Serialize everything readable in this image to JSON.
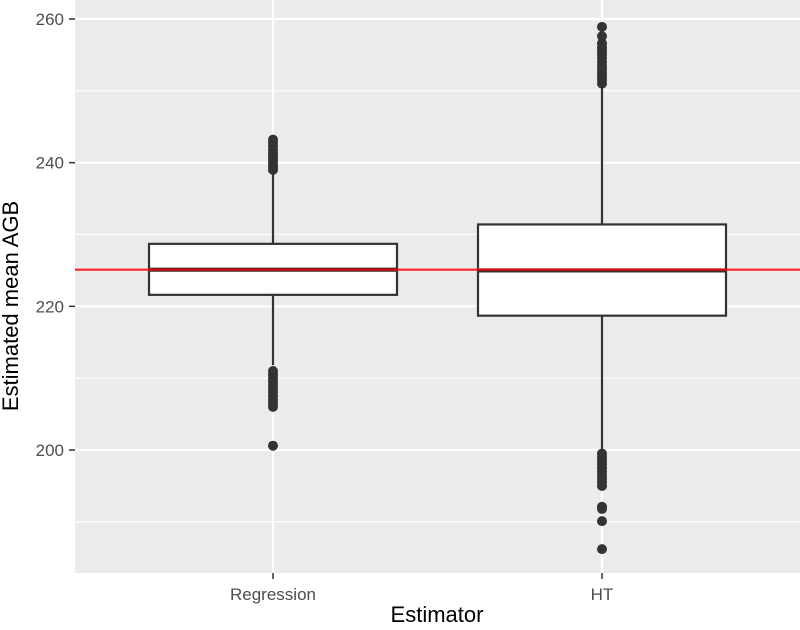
{
  "chart_data": {
    "type": "boxplot",
    "title": "",
    "xlabel": "Estimator",
    "ylabel": "Estimated mean AGB",
    "categories": [
      "Regression",
      "HT"
    ],
    "ylim": [
      184.5,
      261.3
    ],
    "yticks": [
      200,
      220,
      240,
      260
    ],
    "grid": true,
    "legend": "none",
    "reference_line": {
      "y": 225.1,
      "color": "#ff0000",
      "label": ""
    },
    "series": [
      {
        "name": "Regression",
        "min_whisker": 211.8,
        "q1": 221.6,
        "median": 225.1,
        "q3": 228.7,
        "max_whisker": 238.8,
        "outliers_high": [
          239.0,
          239.4,
          239.8,
          240.2,
          240.6,
          241.0,
          241.4,
          241.8,
          242.3,
          242.8,
          243.2
        ],
        "outliers_low": [
          211.0,
          210.5,
          210.0,
          209.5,
          209.0,
          208.5,
          208.0,
          207.5,
          207.0,
          206.5,
          206.0,
          200.6
        ]
      },
      {
        "name": "HT",
        "min_whisker": 199.8,
        "q1": 218.7,
        "median": 225.0,
        "q3": 231.4,
        "max_whisker": 250.6,
        "outliers_high": [
          251.0,
          251.5,
          252.0,
          252.5,
          253.0,
          253.5,
          254.0,
          254.5,
          255.0,
          255.5,
          256.0,
          256.6,
          257.6,
          258.9
        ],
        "outliers_low": [
          199.5,
          199.0,
          198.5,
          198.0,
          197.5,
          197.0,
          196.5,
          196.0,
          195.5,
          195.0,
          192.1,
          191.8,
          190.1,
          186.2
        ]
      }
    ]
  },
  "colors": {
    "panel_bg": "#ebebeb",
    "grid_major": "#ffffff",
    "box_fill": "#ffffff",
    "box_stroke": "#333333",
    "median_stroke": "#333333",
    "reference_line": "#ff0000",
    "point": "#333333"
  }
}
